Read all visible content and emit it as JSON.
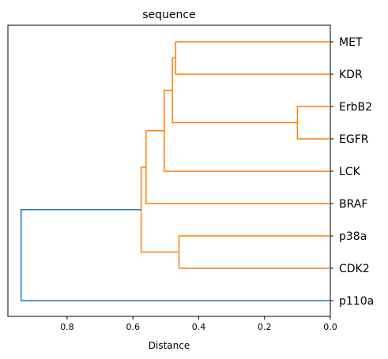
{
  "chart_data": {
    "type": "dendrogram",
    "title": "sequence",
    "xlabel": "Distance",
    "xlim": [
      0.98,
      0.0
    ],
    "xticks": [
      0.8,
      0.6,
      0.4,
      0.2,
      0.0
    ],
    "xtick_labels": [
      "0.8",
      "0.6",
      "0.4",
      "0.2",
      "0.0"
    ],
    "leaves": [
      "MET",
      "KDR",
      "ErbB2",
      "EGFR",
      "LCK",
      "BRAF",
      "p38a",
      "CDK2",
      "p110a"
    ],
    "merges": [
      {
        "a": "ErbB2",
        "b": "EGFR",
        "distance": 0.1,
        "color": "#ff7f0e"
      },
      {
        "a": "p38a",
        "b": "CDK2",
        "distance": 0.46,
        "color": "#ff7f0e"
      },
      {
        "a": "MET",
        "b": "KDR",
        "distance": 0.47,
        "color": "#ff7f0e"
      },
      {
        "a": "MET+KDR",
        "b": "ErbB2+EGFR",
        "distance": 0.48,
        "color": "#ff7f0e"
      },
      {
        "a": "MET+KDR+ErbB2+EGFR",
        "b": "LCK",
        "distance": 0.505,
        "color": "#ff7f0e"
      },
      {
        "a": "MET..LCK",
        "b": "BRAF",
        "distance": 0.56,
        "color": "#ff7f0e"
      },
      {
        "a": "MET..BRAF",
        "b": "p38a+CDK2",
        "distance": 0.575,
        "color": "#ff7f0e"
      },
      {
        "a": "MET..CDK2",
        "b": "p110a",
        "distance": 0.94,
        "color": "#1f77b4"
      }
    ],
    "colors": {
      "cluster": "#ff7f0e",
      "above_threshold": "#1f77b4"
    },
    "grid": false,
    "legend": "none"
  }
}
